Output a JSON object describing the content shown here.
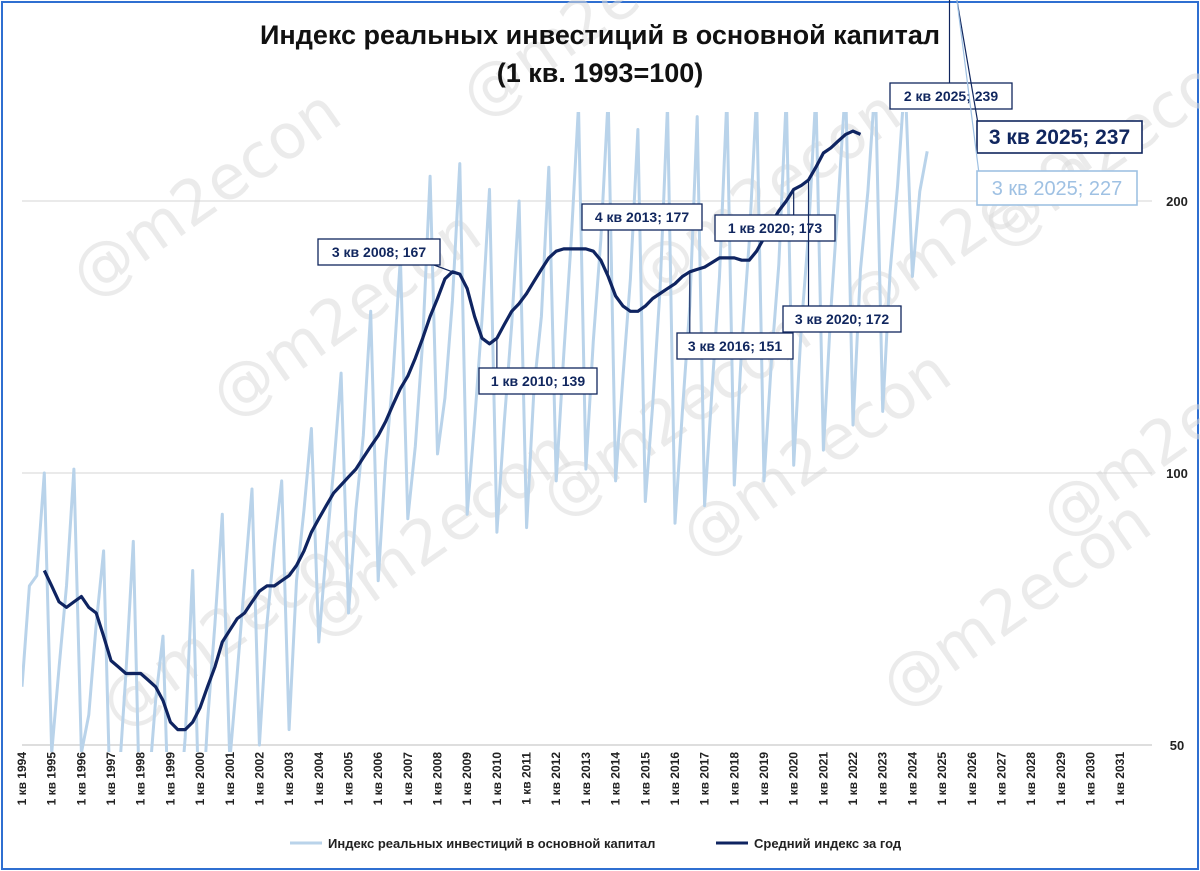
{
  "chart_data": {
    "type": "line",
    "title": "Индекс реальных инвестиций в основной капитал",
    "subtitle": "(1 кв. 1993=100)",
    "y_scale": "log",
    "ylim": [
      50,
      270
    ],
    "y_ticks": [
      50,
      100,
      200
    ],
    "x_tick_labels": [
      "1 кв 1994",
      "1 кв 1995",
      "1 кв 1996",
      "1 кв 1997",
      "1 кв 1998",
      "1 кв 1999",
      "1 кв 2000",
      "1 кв 2001",
      "1 кв 2002",
      "1 кв 2003",
      "1 кв 2004",
      "1 кв 2005",
      "1 кв 2006",
      "1 кв 2007",
      "1 кв 2008",
      "1 кв 2009",
      "1 кв 2010",
      "1 кв 2011",
      "1 кв 2012",
      "1 кв 2013",
      "1 кв 2014",
      "1 кв 2015",
      "1 кв 2016",
      "1 кв 2017",
      "1 кв 2018",
      "1 кв 2019",
      "1 кв 2020",
      "1 кв 2021",
      "1 кв 2022",
      "1 кв 2023",
      "1 кв 2024",
      "1 кв 2025",
      "1 кв 2026",
      "1 кв 2027",
      "1 кв 2028",
      "1 кв 2029",
      "1 кв 2030",
      "1 кв 2031"
    ],
    "grid": true,
    "legend_position": "bottom",
    "series": [
      {
        "name": "Индекс реальных инвестиций в основной капитал",
        "color": "#b9d3ea",
        "start": "1 кв 1994",
        "values": [
          58,
          75,
          77,
          100,
          49,
          61,
          75,
          101,
          49,
          54,
          68,
          82,
          40,
          45,
          60,
          84,
          38,
          44,
          56,
          66,
          36,
          40,
          51,
          78,
          38,
          53,
          68,
          90,
          48,
          60,
          76,
          96,
          50,
          68,
          83,
          98,
          52,
          76,
          91,
          112,
          65,
          82,
          101,
          129,
          70,
          91,
          110,
          151,
          76,
          103,
          128,
          173,
          89,
          107,
          140,
          213,
          105,
          121,
          155,
          220,
          90,
          114,
          148,
          206,
          86,
          114,
          146,
          200,
          87,
          124,
          149,
          218,
          98,
          135,
          180,
          255,
          101,
          140,
          181,
          260,
          98,
          128,
          164,
          240,
          93,
          119,
          160,
          255,
          88,
          117,
          153,
          248,
          92,
          124,
          165,
          260,
          97,
          138,
          180,
          262,
          98,
          133,
          170,
          261,
          102,
          144,
          184,
          264,
          106,
          151,
          200,
          270,
          113,
          168,
          205,
          272,
          117,
          167,
          208,
          275,
          165,
          205,
          227
        ]
      },
      {
        "name": "Средний индекс за год",
        "color": "#0f2461",
        "start": "4 кв 1994",
        "values": [
          78,
          75,
          72,
          71,
          72,
          73,
          71,
          70,
          66,
          62,
          61,
          60,
          60,
          60,
          59,
          58,
          56,
          53,
          52,
          52,
          53,
          55,
          58,
          61,
          65,
          67,
          69,
          70,
          72,
          74,
          75,
          75,
          76,
          77,
          79,
          82,
          86,
          89,
          92,
          95,
          97,
          99,
          101,
          104,
          107,
          110,
          114,
          119,
          124,
          128,
          134,
          141,
          149,
          156,
          164,
          167,
          166,
          160,
          149,
          141,
          139,
          141,
          146,
          151,
          154,
          158,
          163,
          168,
          173,
          176,
          177,
          177,
          177,
          177,
          176,
          172,
          165,
          157,
          153,
          151,
          151,
          153,
          156,
          158,
          160,
          162,
          165,
          167,
          168,
          169,
          171,
          173,
          173,
          173,
          172,
          172,
          176,
          182,
          189,
          195,
          200,
          206,
          208,
          211,
          218,
          226,
          229,
          233,
          237,
          239,
          237
        ]
      }
    ],
    "annotations": [
      {
        "label": "3 кв 2008; 167",
        "series": 1,
        "period": "3 кв 2008"
      },
      {
        "label": "1 кв 2010; 139",
        "series": 1,
        "period": "1 кв 2010"
      },
      {
        "label": "4 кв 2013; 177",
        "series": 1,
        "period": "4 кв 2013"
      },
      {
        "label": "3 кв 2016; 151",
        "series": 1,
        "period": "3 кв 2016"
      },
      {
        "label": "1 кв 2020; 173",
        "series": 1,
        "period": "1 кв 2020"
      },
      {
        "label": "3 кв 2020; 172",
        "series": 1,
        "period": "3 кв 2020"
      },
      {
        "label": "2 кв 2025; 239",
        "series": 1,
        "period": "2 кв 2025"
      },
      {
        "label": "3 кв 2025; 237",
        "series": 1,
        "period": "3 кв 2025"
      },
      {
        "label": "3 кв 2025; 227",
        "series": 0,
        "period": "3 кв 2025"
      }
    ]
  },
  "watermark": "@m2econ"
}
